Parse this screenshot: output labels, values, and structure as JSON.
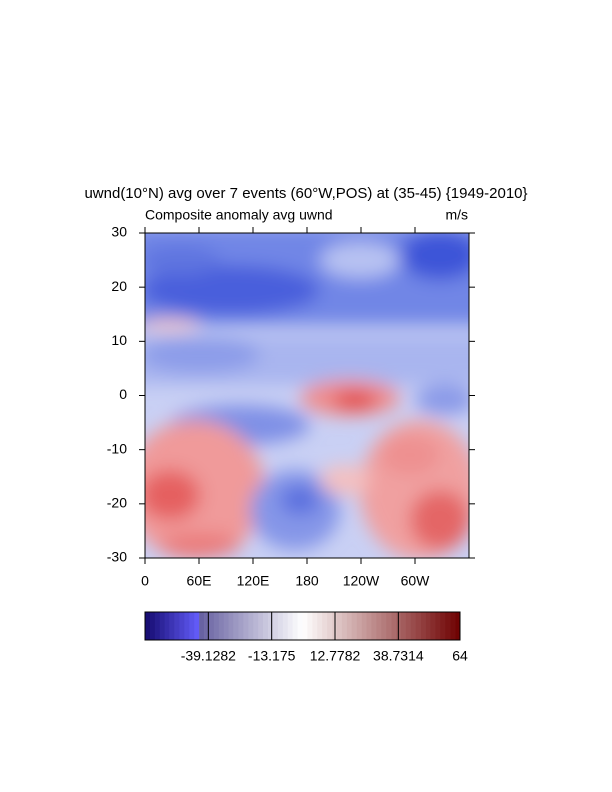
{
  "chart_data": {
    "type": "contour",
    "title": "uwnd(10°N) avg over 7 events (60°W,POS) at (35-45) {1949-2010}",
    "subtitle_left": "Composite anomaly avg uwnd",
    "subtitle_right": "m/s",
    "xlim": [
      0,
      360
    ],
    "xticks": [
      0,
      {
        "value": 60,
        "label": "60E"
      },
      {
        "value": 120,
        "label": "120E"
      },
      180,
      {
        "value": 240,
        "label": "120W"
      },
      {
        "value": 300,
        "label": "60W"
      }
    ],
    "ylim": [
      -30,
      30
    ],
    "yticks": [
      -30,
      -20,
      -10,
      0,
      10,
      20,
      30
    ],
    "colorbar": {
      "lim": [
        -65.0814,
        64
      ],
      "ticks": [
        -39.1282,
        -13.175,
        12.7782,
        38.7314,
        64
      ]
    }
  }
}
